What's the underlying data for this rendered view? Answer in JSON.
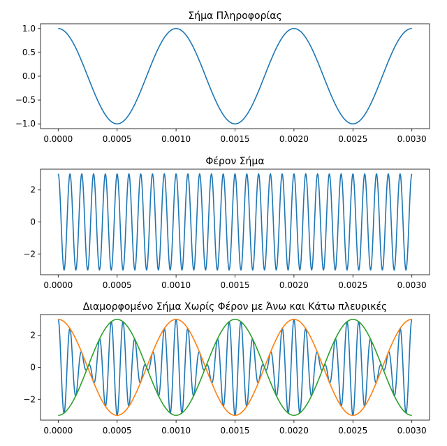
{
  "chart_data": [
    {
      "type": "line",
      "title": "Σήμα Πληροφορίας",
      "xlabel": "",
      "ylabel": "",
      "xlim": [
        -0.00015,
        0.00315
      ],
      "ylim": [
        -1.1,
        1.1
      ],
      "xticks": [
        0,
        0.0005,
        0.001,
        0.0015,
        0.002,
        0.0025,
        0.003
      ],
      "xtick_labels": [
        "0.0000",
        "0.0005",
        "0.0010",
        "0.0015",
        "0.0020",
        "0.0025",
        "0.0030"
      ],
      "yticks": [
        1.0,
        0.5,
        0.0,
        -0.5,
        -1.0
      ],
      "ytick_labels": [
        "1.0",
        "0.5",
        "0.0",
        "−0.5",
        "−1.0"
      ],
      "grid": false,
      "series": [
        {
          "color": "#1f77b4",
          "function": "cos",
          "amplitude": 1,
          "frequency_hz": 1000,
          "x_range": [
            0,
            0.003
          ]
        }
      ]
    },
    {
      "type": "line",
      "title": "Φέρον Σήμα",
      "xlabel": "",
      "ylabel": "",
      "xlim": [
        -0.00015,
        0.00315
      ],
      "ylim": [
        -3.3,
        3.3
      ],
      "xticks": [
        0,
        0.0005,
        0.001,
        0.0015,
        0.002,
        0.0025,
        0.003
      ],
      "xtick_labels": [
        "0.0000",
        "0.0005",
        "0.0010",
        "0.0015",
        "0.0020",
        "0.0025",
        "0.0030"
      ],
      "yticks": [
        2,
        0,
        -2
      ],
      "ytick_labels": [
        "2",
        "0",
        "−2"
      ],
      "grid": false,
      "series": [
        {
          "color": "#1f77b4",
          "function": "cos",
          "amplitude": 3,
          "frequency_hz": 10000,
          "x_range": [
            0,
            0.003
          ]
        }
      ]
    },
    {
      "type": "line",
      "title": "Διαμορφομένο Σήμα Χωρίς Φέρον με Άνω και Κάτω πλευρικές",
      "xlabel": "",
      "ylabel": "",
      "xlim": [
        -0.00015,
        0.00315
      ],
      "ylim": [
        -3.3,
        3.3
      ],
      "xticks": [
        0,
        0.0005,
        0.001,
        0.0015,
        0.002,
        0.0025,
        0.003
      ],
      "xtick_labels": [
        "0.0000",
        "0.0005",
        "0.0010",
        "0.0015",
        "0.0020",
        "0.0025",
        "0.0030"
      ],
      "yticks": [
        2,
        0,
        -2
      ],
      "ytick_labels": [
        "2",
        "0",
        "−2"
      ],
      "grid": false,
      "series": [
        {
          "color": "#1f77b4",
          "function": "dsb",
          "amplitude": 3,
          "message_hz": 1000,
          "carrier_hz": 10000,
          "x_range": [
            0,
            0.003
          ]
        },
        {
          "color": "#ff7f0e",
          "function": "cos",
          "amplitude": 3,
          "frequency_hz": 1000,
          "x_range": [
            0,
            0.003
          ]
        },
        {
          "color": "#2ca02c",
          "function": "cos",
          "amplitude": -3,
          "frequency_hz": 1000,
          "x_range": [
            0,
            0.003
          ]
        }
      ]
    }
  ]
}
